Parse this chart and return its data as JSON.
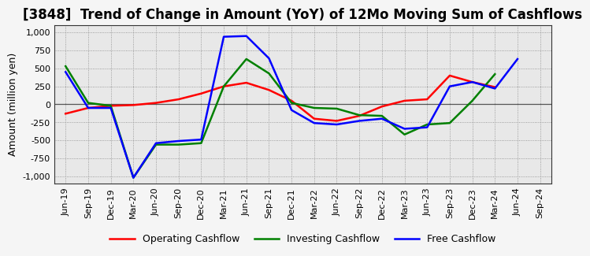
{
  "title": "[3848]  Trend of Change in Amount (YoY) of 12Mo Moving Sum of Cashflows",
  "ylabel": "Amount (million yen)",
  "xlabels": [
    "Jun-19",
    "Sep-19",
    "Dec-19",
    "Mar-20",
    "Jun-20",
    "Sep-20",
    "Dec-20",
    "Mar-21",
    "Jun-21",
    "Sep-21",
    "Dec-21",
    "Mar-22",
    "Jun-22",
    "Sep-22",
    "Dec-22",
    "Mar-23",
    "Jun-23",
    "Sep-23",
    "Dec-23",
    "Mar-24",
    "Jun-24",
    "Sep-24"
  ],
  "operating": [
    -130,
    -50,
    -20,
    -10,
    20,
    70,
    150,
    250,
    300,
    200,
    50,
    -200,
    -230,
    -160,
    -30,
    50,
    70,
    400,
    310,
    240,
    null,
    null
  ],
  "investing": [
    530,
    20,
    -20,
    -1020,
    -560,
    -560,
    -540,
    250,
    630,
    430,
    20,
    -50,
    -60,
    -150,
    -160,
    -420,
    -280,
    -260,
    50,
    420,
    null,
    null
  ],
  "free": [
    450,
    -50,
    -50,
    -1020,
    -540,
    -510,
    -490,
    940,
    950,
    640,
    -80,
    -260,
    -280,
    -230,
    -200,
    -340,
    -320,
    250,
    310,
    220,
    630,
    null
  ],
  "ylim": [
    -1100,
    1100
  ],
  "yticks": [
    -1000,
    -750,
    -500,
    -250,
    0,
    250,
    500,
    750,
    1000
  ],
  "operating_color": "#ff0000",
  "investing_color": "#008000",
  "free_color": "#0000ff",
  "bg_color": "#f5f5f5",
  "plot_bg_color": "#e8e8e8",
  "grid_color": "#888888",
  "title_fontsize": 12,
  "axis_fontsize": 8,
  "legend_labels": [
    "Operating Cashflow",
    "Investing Cashflow",
    "Free Cashflow"
  ]
}
